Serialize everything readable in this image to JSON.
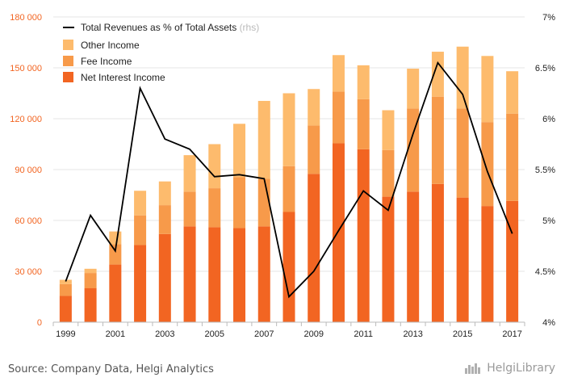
{
  "chart_data": {
    "type": "bar",
    "stacked": true,
    "categories": [
      "1999",
      "2000",
      "2001",
      "2002",
      "2003",
      "2004",
      "2005",
      "2006",
      "2007",
      "2008",
      "2009",
      "2010",
      "2011",
      "2012",
      "2013",
      "2014",
      "2015",
      "2016",
      "2017"
    ],
    "x_tick_labels": [
      "1999",
      "2001",
      "2003",
      "2005",
      "2007",
      "2009",
      "2011",
      "2013",
      "2015",
      "2017"
    ],
    "series": [
      {
        "name": "Net Interest Income",
        "color": "#f26522",
        "values": [
          15500,
          20000,
          34000,
          45500,
          52000,
          56500,
          56000,
          55500,
          56500,
          65000,
          87500,
          105500,
          102000,
          74000,
          77000,
          81500,
          73500,
          68500,
          71500
        ]
      },
      {
        "name": "Fee Income",
        "color": "#f79a4a",
        "values": [
          7000,
          9000,
          12000,
          17500,
          17000,
          20500,
          23000,
          30000,
          28000,
          27000,
          28500,
          30500,
          29500,
          27500,
          49000,
          51500,
          52500,
          49500,
          51500
        ]
      },
      {
        "name": "Other Income",
        "color": "#fdbb6d",
        "values": [
          2500,
          2500,
          7500,
          14500,
          14000,
          21500,
          26000,
          31500,
          46000,
          43000,
          21500,
          21500,
          20000,
          23500,
          23500,
          26500,
          36500,
          39000,
          25000
        ]
      }
    ],
    "line_series": {
      "name": "Total Revenues as % of Total Assets",
      "suffix": "(rhs)",
      "color": "#000000",
      "axis": "right",
      "values": [
        4.4,
        5.05,
        4.7,
        6.3,
        5.8,
        5.7,
        5.43,
        5.45,
        5.41,
        4.25,
        4.5,
        4.9,
        5.29,
        5.1,
        5.85,
        6.55,
        6.24,
        5.48,
        4.87
      ]
    },
    "y_left": {
      "min": 0,
      "max": 180000,
      "ticks": [
        0,
        30000,
        60000,
        90000,
        120000,
        150000,
        180000
      ],
      "tick_labels": [
        "0",
        "30 000",
        "60 000",
        "90 000",
        "120 000",
        "150 000",
        "180 000"
      ],
      "label_color": "#f26522"
    },
    "y_right": {
      "min": 4,
      "max": 7,
      "ticks": [
        4,
        4.5,
        5,
        5.5,
        6,
        6.5,
        7
      ],
      "tick_labels": [
        "4%",
        "4.5%",
        "5%",
        "5.5%",
        "6%",
        "6.5%",
        "7%"
      ]
    },
    "legend_position": "top-left",
    "grid": true
  },
  "footer": {
    "source": "Source: Company Data, Helgi Analytics",
    "logo_text": "HelgiLibrary"
  }
}
